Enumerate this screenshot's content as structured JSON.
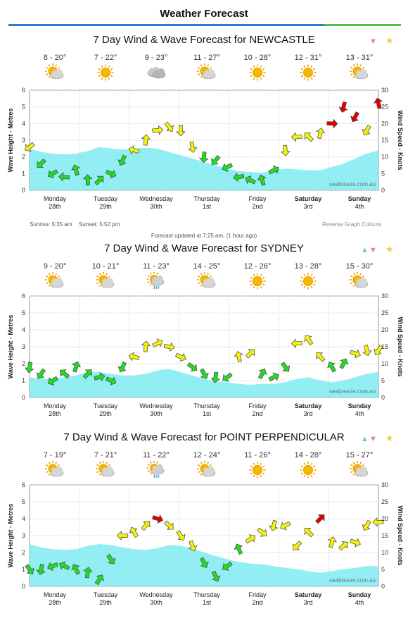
{
  "page": {
    "title": "Weather Forecast"
  },
  "forecasts": [
    {
      "title": "7 Day Wind & Wave Forecast for NEWCASTLE",
      "controls": [
        "down"
      ],
      "temps": [
        "8 - 20°",
        "7 - 22°",
        "9 - 23°",
        "11 - 27°",
        "10 - 28°",
        "12 - 31°",
        "13 - 31°"
      ],
      "weather_icons": [
        "partly-cloudy-icon",
        "sun-icon",
        "cloud-icon",
        "partly-cloudy-icon",
        "sun-icon",
        "sun-icon",
        "partly-cloudy-icon"
      ],
      "sunrise": "Sunrise: 5:35 am",
      "sunset": "Sunset: 5:52 pm",
      "reverse_label": "Reverse Graph Colours",
      "updated": "Forecast updated at 7:25 am, (1 hour ago)"
    },
    {
      "title": "7 Day Wind & Wave Forecast for SYDNEY",
      "controls": [
        "up",
        "down"
      ],
      "temps": [
        "9 - 20°",
        "10 - 21°",
        "11 - 23°",
        "14 - 25°",
        "12 - 26°",
        "13 - 28°",
        "15 - 30°"
      ],
      "weather_icons": [
        "partly-cloudy-icon",
        "partly-cloudy-icon",
        "showers-icon",
        "partly-cloudy-icon",
        "sun-icon",
        "sun-icon",
        "partly-cloudy-icon"
      ]
    },
    {
      "title": "7 Day Wind & Wave Forecast for POINT PERPENDICULAR",
      "controls": [
        "up",
        "down"
      ],
      "temps": [
        "7 - 19°",
        "7 - 21°",
        "11 - 22°",
        "12 - 24°",
        "11 - 26°",
        "14 - 28°",
        "15 - 27°"
      ],
      "weather_icons": [
        "partly-cloudy-icon",
        "partly-cloudy-icon",
        "showers-icon",
        "partly-cloudy-icon",
        "sun-icon",
        "sun-icon",
        "partly-cloudy-icon"
      ]
    }
  ],
  "chart_data": [
    {
      "type": "line",
      "location": "NEWCASTLE",
      "ylabel": "Wave Height - Metres",
      "y2label": "Wind Speed - Knots",
      "ylim": [
        0,
        6
      ],
      "y2lim": [
        0,
        30
      ],
      "yticks": [
        "0",
        "1",
        "2",
        "3",
        "4",
        "5",
        "6"
      ],
      "y2ticks": [
        "0",
        "5",
        "10",
        "15",
        "20",
        "25",
        "30"
      ],
      "day_labels": [
        "Monday",
        "Tuesday",
        "Wednesday",
        "Thursday",
        "Friday",
        "Saturday",
        "Sunday"
      ],
      "date_labels": [
        "28th",
        "29th",
        "30th",
        "1st",
        "2nd",
        "3rd",
        "4th"
      ],
      "bold_days": [
        5,
        6
      ],
      "grid": true,
      "watermark": "seabreeze.com.au",
      "wave_height_m": [
        2.5,
        2.3,
        2.2,
        2.15,
        2.2,
        2.35,
        2.6,
        2.5,
        2.45,
        2.5,
        2.55,
        2.5,
        2.3,
        2.1,
        1.9,
        1.7,
        1.5,
        1.3,
        1.15,
        1.1,
        1.05,
        1.2,
        1.3,
        1.25,
        1.2,
        1.2,
        1.4,
        1.6,
        1.9,
        2.2,
        2.4
      ],
      "wind_knots": [
        13,
        8,
        5,
        4,
        6,
        3,
        3,
        5,
        9,
        12,
        15,
        18,
        19,
        18,
        13,
        10,
        9,
        7,
        4,
        3,
        3,
        6,
        12,
        16,
        16,
        17,
        20,
        25,
        22,
        18,
        26
      ]
    },
    {
      "type": "line",
      "location": "SYDNEY",
      "ylabel": "Wave Height - Metres",
      "y2label": "Wind Speed - Knots",
      "ylim": [
        0,
        6
      ],
      "y2lim": [
        0,
        30
      ],
      "yticks": [
        "0",
        "1",
        "2",
        "3",
        "4",
        "5",
        "6"
      ],
      "y2ticks": [
        "0",
        "5",
        "10",
        "15",
        "20",
        "25",
        "30"
      ],
      "day_labels": [
        "Monday",
        "Tuesday",
        "Wednesday",
        "Thursday",
        "Friday",
        "Saturday",
        "Sunday"
      ],
      "date_labels": [
        "28th",
        "29th",
        "30th",
        "1st",
        "2nd",
        "3rd",
        "4th"
      ],
      "bold_days": [
        5,
        6
      ],
      "grid": true,
      "watermark": "seabreeze.com.au",
      "wave_height_m": [
        1.2,
        1.1,
        1.1,
        1.2,
        1.3,
        1.5,
        1.5,
        1.4,
        1.3,
        1.3,
        1.4,
        1.6,
        1.7,
        1.5,
        1.3,
        1.1,
        0.95,
        0.9,
        0.8,
        0.75,
        0.8,
        0.8,
        0.9,
        1.1,
        1.2,
        1.0,
        0.9,
        1.0,
        1.2,
        1.4,
        1.5
      ],
      "wind_knots": [
        9,
        7,
        5,
        7,
        9,
        7,
        6,
        5,
        9,
        12,
        15,
        16,
        15,
        12,
        9,
        7,
        6,
        6,
        12,
        13,
        7,
        6,
        9,
        16,
        17,
        12,
        9,
        10,
        13,
        14,
        14
      ]
    },
    {
      "type": "line",
      "location": "POINT PERPENDICULAR",
      "ylabel": "Wave Height - Metres",
      "y2label": "Wind Speed - Knots",
      "ylim": [
        0,
        6
      ],
      "y2lim": [
        0,
        30
      ],
      "yticks": [
        "0",
        "1",
        "2",
        "3",
        "4",
        "5",
        "6"
      ],
      "y2ticks": [
        "0",
        "5",
        "10",
        "15",
        "20",
        "25",
        "30"
      ],
      "day_labels": [
        "Monday",
        "Tuesday",
        "Wednesday",
        "Thursday",
        "Friday",
        "Saturday",
        "Sunday"
      ],
      "date_labels": [
        "28th",
        "29th",
        "30th",
        "1st",
        "2nd",
        "3rd",
        "4th"
      ],
      "bold_days": [
        5,
        6
      ],
      "grid": true,
      "watermark": "seabreeze.com.au",
      "wave_height_m": [
        2.5,
        2.3,
        2.2,
        2.15,
        2.2,
        2.4,
        2.5,
        2.45,
        2.3,
        2.2,
        2.15,
        2.25,
        2.45,
        2.4,
        2.25,
        2.0,
        1.8,
        1.6,
        1.45,
        1.35,
        1.3,
        1.2,
        1.1,
        1.0,
        0.9,
        0.8,
        0.9,
        1.0,
        1.1,
        1.2,
        1.2
      ],
      "wind_knots": [
        5,
        5,
        6,
        6,
        5,
        4,
        2,
        8,
        15,
        16,
        18,
        20,
        18,
        15,
        12,
        7,
        3,
        6,
        11,
        14,
        16,
        18,
        18,
        12,
        16,
        20,
        13,
        12,
        13,
        18,
        19
      ]
    }
  ]
}
